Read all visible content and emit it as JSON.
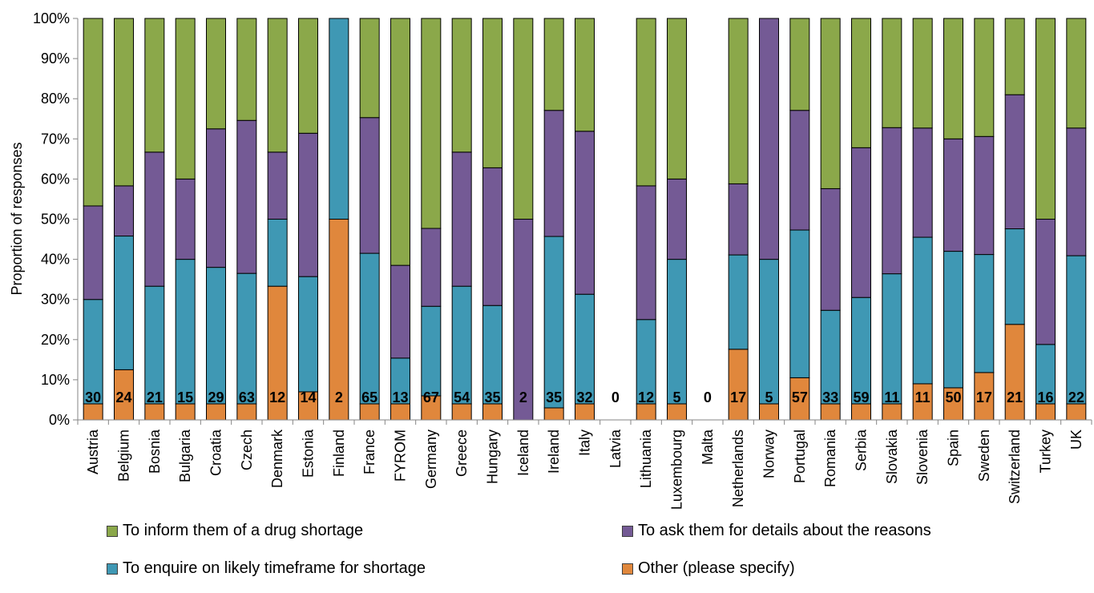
{
  "chart_data": {
    "type": "bar",
    "stacked": true,
    "ylabel": "Proportion of responses",
    "ylim": [
      0,
      100
    ],
    "yticks": [
      "0%",
      "10%",
      "20%",
      "30%",
      "40%",
      "50%",
      "60%",
      "70%",
      "80%",
      "90%",
      "100%"
    ],
    "grid": false,
    "legend_placement": "bottom",
    "categories": [
      "Austria",
      "Belgium",
      "Bosnia",
      "Bulgaria",
      "Croatia",
      "Czech",
      "Denmark",
      "Estonia",
      "Finland",
      "France",
      "FYROM",
      "Germany",
      "Greece",
      "Hungary",
      "Iceland",
      "Ireland",
      "Italy",
      "Latvia",
      "Lithuania",
      "Luxembourg",
      "Malta",
      "Netherlands",
      "Norway",
      "Portugal",
      "Romania",
      "Serbia",
      "Slovakia",
      "Slovenia",
      "Spain",
      "Sweden",
      "Switzerland",
      "Turkey",
      "UK"
    ],
    "n_labels": [
      "30",
      "24",
      "21",
      "15",
      "29",
      "63",
      "12",
      "14",
      "2",
      "65",
      "13",
      "67",
      "54",
      "35",
      "2",
      "35",
      "32",
      "0",
      "12",
      "5",
      "0",
      "17",
      "5",
      "57",
      "33",
      "59",
      "11",
      "11",
      "50",
      "17",
      "21",
      "16",
      "22"
    ],
    "series": [
      {
        "name": "Other (please specify)",
        "color": "#E0873C",
        "values": [
          4,
          12.5,
          4,
          4,
          4,
          4,
          33.3,
          7,
          50,
          4,
          4,
          6,
          4,
          4,
          0,
          3,
          4,
          0,
          4,
          4,
          0,
          17.6,
          4,
          10.5,
          4,
          4,
          4,
          9,
          8,
          11.8,
          23.8,
          4,
          4
        ]
      },
      {
        "name": "To enquire on likely timeframe for shortage",
        "color": "#3F98B4",
        "values": [
          26,
          33.3,
          29.3,
          36,
          34,
          32.5,
          16.7,
          28.7,
          50,
          37.5,
          11.4,
          22.3,
          29.3,
          24.5,
          0,
          42.7,
          27.3,
          0,
          21,
          36,
          0,
          23.5,
          36,
          36.8,
          23.3,
          26.5,
          32.4,
          36.5,
          34,
          29.4,
          23.8,
          14.8,
          36.9
        ]
      },
      {
        "name": "To ask them for details about the reasons",
        "color": "#745A95",
        "values": [
          23.3,
          12.5,
          33.4,
          20,
          34.5,
          38.1,
          16.7,
          35.7,
          0,
          33.8,
          23.1,
          19.4,
          33.4,
          34.3,
          50,
          31.4,
          40.6,
          0,
          33.3,
          20,
          0,
          17.7,
          60,
          29.8,
          30.3,
          37.3,
          36.4,
          27.2,
          28,
          29.4,
          33.4,
          31.2,
          31.8
        ]
      },
      {
        "name": "To inform them of a drug shortage",
        "color": "#8BA84A",
        "values": [
          46.7,
          41.7,
          33.3,
          40,
          27.5,
          25.4,
          33.3,
          28.6,
          0,
          24.7,
          61.5,
          52.3,
          33.3,
          37.2,
          50,
          22.9,
          28.1,
          0,
          41.7,
          40,
          0,
          41.2,
          0,
          22.9,
          42.4,
          32.2,
          27.2,
          27.3,
          30,
          29.4,
          19,
          50,
          27.3
        ]
      }
    ]
  },
  "legend": {
    "items": [
      {
        "label": "To inform them of a drug shortage",
        "color": "#8BA84A"
      },
      {
        "label": "To ask them for details about the reasons",
        "color": "#745A95"
      },
      {
        "label": "To enquire on likely timeframe for shortage",
        "color": "#3F98B4"
      },
      {
        "label": "Other (please specify)",
        "color": "#E0873C"
      }
    ]
  }
}
